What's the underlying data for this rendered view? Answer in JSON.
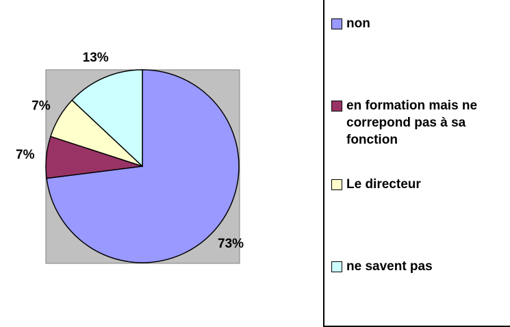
{
  "chart_data": {
    "type": "pie",
    "categories": [
      "non",
      "en formation mais ne correpond pas à sa fonction",
      "Le directeur",
      "ne savent pas"
    ],
    "values": [
      73,
      7,
      7,
      13
    ],
    "value_labels": [
      "73%",
      "7%",
      "7%",
      "13%"
    ],
    "colors": [
      "#9999ff",
      "#993366",
      "#ffffcc",
      "#ccffff"
    ],
    "legend": "right"
  }
}
